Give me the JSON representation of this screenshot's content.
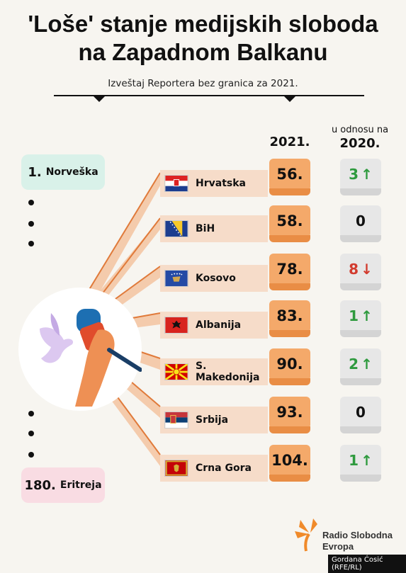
{
  "title_line1": "'Loše' stanje medijskih sloboda",
  "title_line2": "na Zapadnom Balkanu",
  "subtitle": "Izveštaj Reportera bez granica za 2021.",
  "headers": {
    "year": "2021.",
    "relative_line1": "u odnosu na",
    "relative_line2": "2020."
  },
  "top": {
    "rank": "1.",
    "name": "Norveška"
  },
  "bottom": {
    "rank": "180.",
    "name": "Eritreja"
  },
  "rows": [
    {
      "country": "Hrvatska",
      "score": "56.",
      "change": "3",
      "trend": "up",
      "flag": "croatia-flag-icon"
    },
    {
      "country": "BiH",
      "score": "58.",
      "change": "0",
      "trend": "none",
      "flag": "bih-flag-icon"
    },
    {
      "country": "Kosovo",
      "score": "78.",
      "change": "8",
      "trend": "down",
      "flag": "kosovo-flag-icon"
    },
    {
      "country": "Albanija",
      "score": "83.",
      "change": "1",
      "trend": "up",
      "flag": "albania-flag-icon"
    },
    {
      "country": "S. Makedonija",
      "score": "90.",
      "change": "2",
      "trend": "up",
      "flag": "north-macedonia-flag-icon"
    },
    {
      "country": "Srbija",
      "score": "93.",
      "change": "0",
      "trend": "none",
      "flag": "serbia-flag-icon"
    },
    {
      "country": "Crna Gora",
      "score": "104.",
      "change": "1",
      "trend": "up",
      "flag": "montenegro-flag-icon"
    }
  ],
  "arrows": {
    "up": "↑",
    "down": "↓"
  },
  "logo": {
    "line1": "Radio Slobodna",
    "line2": "Evropa"
  },
  "credit": "Gordana Ćosić (RFE/RL)",
  "colors": {
    "orange": "#f4a96a",
    "orange_dark": "#e98d45",
    "up": "#2e9a3e",
    "down": "#d23b2e",
    "band": "#f6dcc9",
    "mint": "#d9f1e9",
    "pink": "#f9dce3"
  }
}
